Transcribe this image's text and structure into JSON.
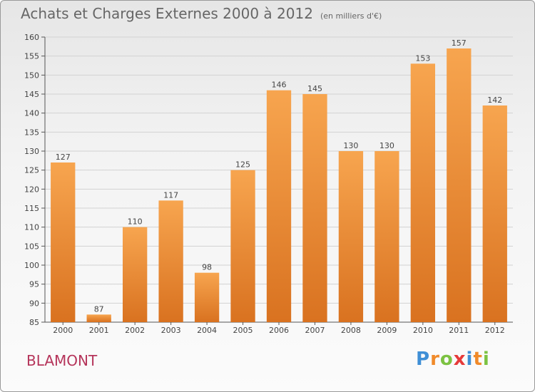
{
  "header": {
    "title": "Achats et Charges Externes 2000 à 2012",
    "unit": "(en milliers d'€)"
  },
  "footer": {
    "commune": "BLAMONT",
    "logo_letters": [
      {
        "ch": "P",
        "color": "#3f8fd6"
      },
      {
        "ch": "r",
        "color": "#f08a2a"
      },
      {
        "ch": "o",
        "color": "#7cc242"
      },
      {
        "ch": "x",
        "color": "#e63a3a"
      },
      {
        "ch": "i",
        "color": "#3f8fd6"
      },
      {
        "ch": "t",
        "color": "#f08a2a"
      },
      {
        "ch": "i",
        "color": "#7cc242"
      }
    ]
  },
  "colors": {
    "bar_top": "#f7a54f",
    "bar_bottom": "#d97220",
    "grid": "#d2d2d2",
    "axis": "#555555"
  },
  "chart_data": {
    "type": "bar",
    "title": "Achats et Charges Externes 2000 à 2012",
    "subtitle": "(en milliers d'€)",
    "xlabel": "",
    "ylabel": "",
    "categories": [
      "2000",
      "2001",
      "2002",
      "2003",
      "2004",
      "2005",
      "2006",
      "2007",
      "2008",
      "2009",
      "2010",
      "2011",
      "2012"
    ],
    "values": [
      127,
      87,
      110,
      117,
      98,
      125,
      146,
      145,
      130,
      130,
      153,
      157,
      142
    ],
    "ylim": [
      85,
      160
    ],
    "yticks": [
      85,
      90,
      95,
      100,
      105,
      110,
      115,
      120,
      125,
      130,
      135,
      140,
      145,
      150,
      155,
      160
    ],
    "grid": true,
    "legend": "none"
  }
}
